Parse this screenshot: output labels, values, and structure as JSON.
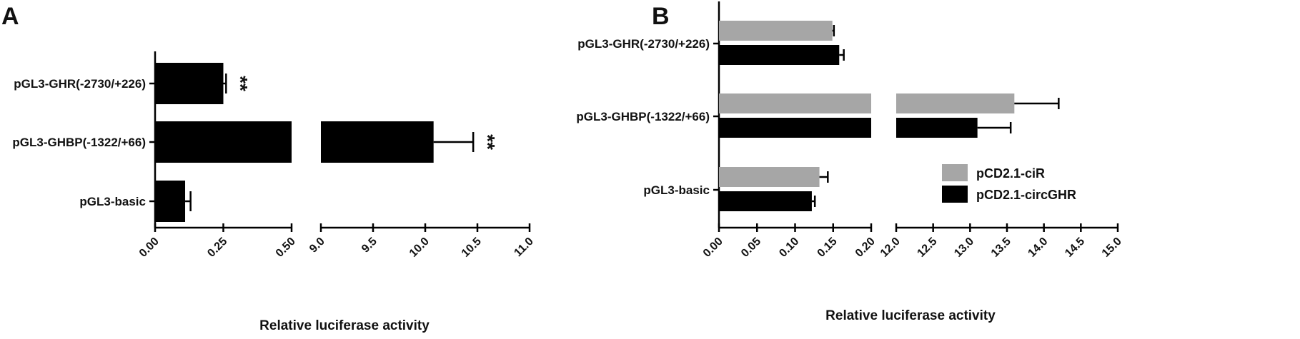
{
  "chart_data": [
    {
      "panel": "A",
      "type": "bar",
      "orientation": "horizontal",
      "categories": [
        "pGL3-GHR(-2730/+226)",
        "pGL3-GHBP(-1322/+66)",
        "pGL3-basic"
      ],
      "values": [
        0.25,
        10.08,
        0.11
      ],
      "errors": [
        0.01,
        0.38,
        0.02
      ],
      "significance": [
        "**",
        "**",
        ""
      ],
      "xlabel": "Relative luciferase activity",
      "ylabel": "",
      "x_break": true,
      "x_segments": [
        {
          "range": [
            0,
            0.5
          ],
          "ticks": [
            "0.00",
            "0.25",
            "0.50"
          ],
          "tick_values": [
            0,
            0.25,
            0.5
          ]
        },
        {
          "range": [
            9.0,
            11.0
          ],
          "ticks": [
            "9.0",
            "9.5",
            "10.0",
            "10.5",
            "11.0"
          ],
          "tick_values": [
            9.0,
            9.5,
            10.0,
            10.5,
            11.0
          ]
        }
      ],
      "bar_color": "#000000",
      "grid": false,
      "legend": "none"
    },
    {
      "panel": "B",
      "type": "bar",
      "orientation": "horizontal",
      "categories": [
        "pGL3-GHR(-2730/+226)",
        "pGL3-GHBP(-1322/+66)",
        "pGL3-basic"
      ],
      "series": [
        {
          "name": "pCD2.1-ciR",
          "color": "#a6a6a6",
          "values": [
            0.149,
            13.6,
            0.132
          ],
          "errors": [
            0.002,
            0.6,
            0.011
          ]
        },
        {
          "name": "pCD2.1-circGHR",
          "color": "#000000",
          "values": [
            0.158,
            13.1,
            0.122
          ],
          "errors": [
            0.006,
            0.45,
            0.004
          ]
        }
      ],
      "xlabel": "Relative luciferase activity",
      "ylabel": "",
      "x_break": true,
      "x_segments": [
        {
          "range": [
            0,
            0.2
          ],
          "ticks": [
            "0.00",
            "0.05",
            "0.10",
            "0.15",
            "0.20"
          ],
          "tick_values": [
            0,
            0.05,
            0.1,
            0.15,
            0.2
          ]
        },
        {
          "range": [
            12.0,
            15.0
          ],
          "ticks": [
            "12.0",
            "12.5",
            "13.0",
            "13.5",
            "14.0",
            "14.5",
            "15.0"
          ],
          "tick_values": [
            12.0,
            12.5,
            13.0,
            13.5,
            14.0,
            14.5,
            15.0
          ]
        }
      ],
      "grid": false,
      "legend": "right"
    }
  ]
}
